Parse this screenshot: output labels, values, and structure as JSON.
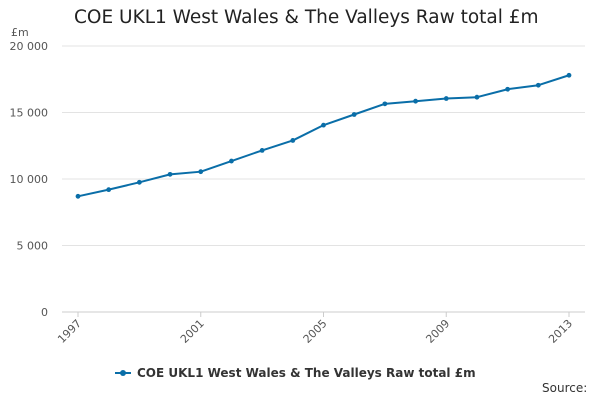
{
  "chart_data": {
    "type": "line",
    "title": "COE UKL1 West Wales & The Valleys Raw total £m",
    "ylabel": "£m",
    "xlabel": "",
    "ylim": [
      0,
      20000
    ],
    "xlim": [
      1997,
      2013
    ],
    "yticks": [
      0,
      5000,
      10000,
      15000,
      20000
    ],
    "ytick_labels": [
      "0",
      "5 000",
      "10 000",
      "15 000",
      "20 000"
    ],
    "xticks": [
      1997,
      2001,
      2005,
      2009,
      2013
    ],
    "xtick_labels": [
      "1997",
      "2001",
      "2005",
      "2009",
      "2013"
    ],
    "grid": true,
    "legend": "bottom",
    "series": [
      {
        "name": "COE UKL1 West Wales & The Valleys Raw total £m",
        "color": "#0a6ea8",
        "x": [
          1997,
          1998,
          1999,
          2000,
          2001,
          2002,
          2003,
          2004,
          2005,
          2006,
          2007,
          2008,
          2009,
          2010,
          2011,
          2012,
          2013
        ],
        "values": [
          8700,
          9200,
          9750,
          10350,
          10550,
          11350,
          12150,
          12900,
          14050,
          14850,
          15650,
          15850,
          16050,
          16150,
          16750,
          17050,
          17800
        ]
      }
    ]
  },
  "source": {
    "label": "Source:"
  }
}
